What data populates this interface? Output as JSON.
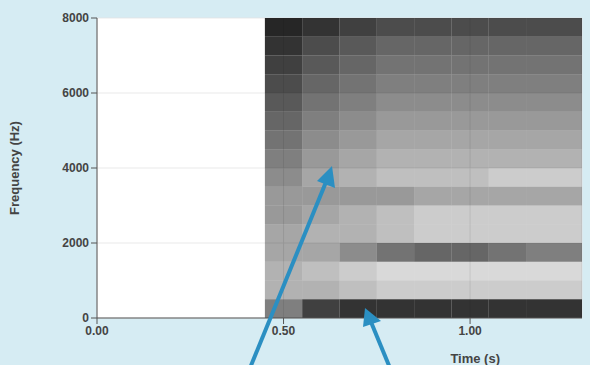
{
  "chart_data": {
    "type": "heatmap",
    "x_label": "Time (s)",
    "y_label": "Frequency (Hz)",
    "xlim": [
      0,
      1.3
    ],
    "xticks": [
      {
        "value": 0,
        "label": "0.00"
      },
      {
        "value": 0.5,
        "label": "0.50"
      },
      {
        "value": 1,
        "label": "1.00"
      }
    ],
    "ylim": [
      0,
      8000
    ],
    "yticks": [
      0,
      2000,
      4000,
      6000,
      8000
    ],
    "grid": true,
    "color": "#000000",
    "x_bins": [
      0.45,
      0.55,
      0.65,
      0.75,
      0.85,
      0.95,
      1.05,
      1.15,
      1.3
    ],
    "y_bins": [
      0,
      500,
      1000,
      1500,
      2000,
      2500,
      3000,
      3500,
      4000,
      4500,
      5000,
      5500,
      6000,
      6500,
      7000,
      7500,
      8000
    ],
    "cells": [
      [
        0.5,
        0.75,
        0.8,
        0.8,
        0.8,
        0.8,
        0.8,
        0.8
      ],
      [
        0.3,
        0.3,
        0.25,
        0.2,
        0.2,
        0.2,
        0.2,
        0.2
      ],
      [
        0.3,
        0.25,
        0.2,
        0.15,
        0.15,
        0.15,
        0.15,
        0.15
      ],
      [
        0.35,
        0.35,
        0.45,
        0.55,
        0.6,
        0.6,
        0.55,
        0.5
      ],
      [
        0.35,
        0.3,
        0.3,
        0.25,
        0.2,
        0.2,
        0.2,
        0.2
      ],
      [
        0.4,
        0.35,
        0.3,
        0.25,
        0.2,
        0.2,
        0.2,
        0.2
      ],
      [
        0.4,
        0.4,
        0.4,
        0.4,
        0.35,
        0.35,
        0.35,
        0.35
      ],
      [
        0.45,
        0.35,
        0.3,
        0.25,
        0.25,
        0.25,
        0.2,
        0.2
      ],
      [
        0.5,
        0.4,
        0.35,
        0.3,
        0.3,
        0.3,
        0.3,
        0.3
      ],
      [
        0.55,
        0.45,
        0.4,
        0.35,
        0.35,
        0.35,
        0.35,
        0.35
      ],
      [
        0.6,
        0.5,
        0.45,
        0.4,
        0.4,
        0.4,
        0.4,
        0.4
      ],
      [
        0.65,
        0.55,
        0.5,
        0.45,
        0.45,
        0.45,
        0.45,
        0.45
      ],
      [
        0.7,
        0.6,
        0.55,
        0.5,
        0.5,
        0.5,
        0.5,
        0.5
      ],
      [
        0.75,
        0.65,
        0.6,
        0.55,
        0.55,
        0.55,
        0.55,
        0.55
      ],
      [
        0.8,
        0.7,
        0.65,
        0.6,
        0.6,
        0.6,
        0.6,
        0.6
      ],
      [
        0.85,
        0.8,
        0.75,
        0.7,
        0.7,
        0.7,
        0.7,
        0.7
      ]
    ]
  }
}
